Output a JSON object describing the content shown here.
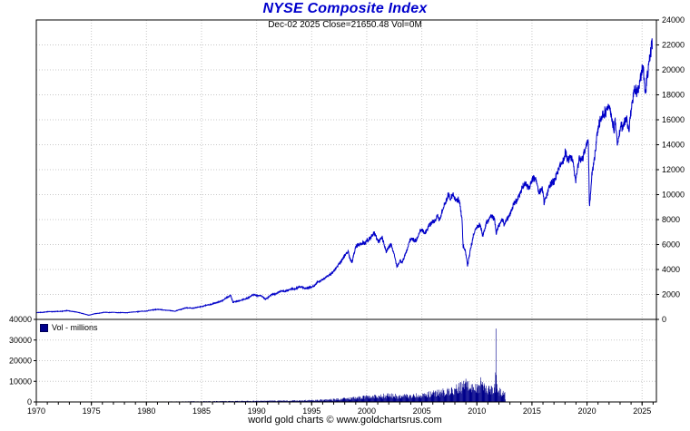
{
  "title": "NYSE Composite Index",
  "subtitle": "Dec-02 2025   Close=21650.48   Vol=0M",
  "footer": "world gold charts © www.goldchartsrus.com",
  "legend": {
    "volume_label": "Vol - millions"
  },
  "colors": {
    "line": "#0000c8",
    "volume": "#00008b",
    "grid": "#c8c8c8",
    "axis": "#000000",
    "title": "#0000cc",
    "label": "#000000"
  },
  "chart_data": {
    "type": "line+bar",
    "title": "NYSE Composite Index",
    "subtitle": "Dec-02 2025   Close=21650.48   Vol=0M",
    "last_quote": {
      "date": "Dec-02 2025",
      "close": 21650.48,
      "vol_millions": 0
    },
    "x_axis": {
      "range": [
        1970,
        2026.3
      ],
      "ticks": [
        1970,
        1975,
        1980,
        1985,
        1990,
        1995,
        2000,
        2005,
        2010,
        2015,
        2020,
        2025
      ]
    },
    "price_axis": {
      "side": "right",
      "range": [
        0,
        24000
      ],
      "ticks": [
        0,
        2000,
        4000,
        6000,
        8000,
        10000,
        12000,
        14000,
        16000,
        18000,
        20000,
        22000,
        24000
      ]
    },
    "volume_axis": {
      "side": "left",
      "range": [
        0,
        40000
      ],
      "ticks": [
        0,
        10000,
        20000,
        30000,
        40000
      ],
      "label": "Vol - millions"
    },
    "price_anchors": [
      [
        1970.0,
        530
      ],
      [
        1970.5,
        560
      ],
      [
        1971.2,
        620
      ],
      [
        1972.0,
        640
      ],
      [
        1972.9,
        700
      ],
      [
        1973.5,
        600
      ],
      [
        1974.0,
        520
      ],
      [
        1974.75,
        340
      ],
      [
        1975.3,
        450
      ],
      [
        1976.2,
        560
      ],
      [
        1977.0,
        555
      ],
      [
        1978.2,
        540
      ],
      [
        1979.0,
        600
      ],
      [
        1980.0,
        680
      ],
      [
        1980.9,
        810
      ],
      [
        1981.6,
        750
      ],
      [
        1982.6,
        660
      ],
      [
        1983.5,
        920
      ],
      [
        1984.3,
        900
      ],
      [
        1985.0,
        1030
      ],
      [
        1986.4,
        1350
      ],
      [
        1987.0,
        1550
      ],
      [
        1987.65,
        1960
      ],
      [
        1987.85,
        1350
      ],
      [
        1988.3,
        1480
      ],
      [
        1989.0,
        1650
      ],
      [
        1989.7,
        1950
      ],
      [
        1990.4,
        1880
      ],
      [
        1990.8,
        1630
      ],
      [
        1991.3,
        1950
      ],
      [
        1992.0,
        2180
      ],
      [
        1993.0,
        2350
      ],
      [
        1994.1,
        2620
      ],
      [
        1994.6,
        2480
      ],
      [
        1995.0,
        2600
      ],
      [
        1995.9,
        3150
      ],
      [
        1996.5,
        3450
      ],
      [
        1997.2,
        4100
      ],
      [
        1997.75,
        4800
      ],
      [
        1998.3,
        5350
      ],
      [
        1998.65,
        4550
      ],
      [
        1999.0,
        5750
      ],
      [
        1999.4,
        6200
      ],
      [
        1999.8,
        6050
      ],
      [
        2000.2,
        6550
      ],
      [
        2000.65,
        6850
      ],
      [
        2001.0,
        6300
      ],
      [
        2001.4,
        6450
      ],
      [
        2001.75,
        5450
      ],
      [
        2002.0,
        5900
      ],
      [
        2002.25,
        5950
      ],
      [
        2002.75,
        4350
      ],
      [
        2003.05,
        4750
      ],
      [
        2003.2,
        4450
      ],
      [
        2003.9,
        6250
      ],
      [
        2004.5,
        6400
      ],
      [
        2004.95,
        7150
      ],
      [
        2005.3,
        7100
      ],
      [
        2005.9,
        7700
      ],
      [
        2006.4,
        8250
      ],
      [
        2006.6,
        7850
      ],
      [
        2007.0,
        9150
      ],
      [
        2007.45,
        9900
      ],
      [
        2007.6,
        9500
      ],
      [
        2007.8,
        10250
      ],
      [
        2008.0,
        9700
      ],
      [
        2008.4,
        9500
      ],
      [
        2008.65,
        8200
      ],
      [
        2008.75,
        5900
      ],
      [
        2008.95,
        5500
      ],
      [
        2009.15,
        4250
      ],
      [
        2009.5,
        6000
      ],
      [
        2009.75,
        6900
      ],
      [
        2010.05,
        7300
      ],
      [
        2010.3,
        7700
      ],
      [
        2010.55,
        6750
      ],
      [
        2010.9,
        7800
      ],
      [
        2011.15,
        8250
      ],
      [
        2011.35,
        8450
      ],
      [
        2011.6,
        7900
      ],
      [
        2011.75,
        6850
      ],
      [
        2012.0,
        7650
      ],
      [
        2012.35,
        7950
      ],
      [
        2012.45,
        7350
      ],
      [
        2012.8,
        8150
      ],
      [
        2013.3,
        9100
      ],
      [
        2013.95,
        10300
      ],
      [
        2014.5,
        11000
      ],
      [
        2014.75,
        10500
      ],
      [
        2015.0,
        11050
      ],
      [
        2015.4,
        11200
      ],
      [
        2015.65,
        10050
      ],
      [
        2015.95,
        10350
      ],
      [
        2016.1,
        9450
      ],
      [
        2016.55,
        10700
      ],
      [
        2016.85,
        10900
      ],
      [
        2017.2,
        11600
      ],
      [
        2017.9,
        12750
      ],
      [
        2018.05,
        13600
      ],
      [
        2018.25,
        12550
      ],
      [
        2018.7,
        13050
      ],
      [
        2018.95,
        11200
      ],
      [
        2019.3,
        12850
      ],
      [
        2019.55,
        13000
      ],
      [
        2019.9,
        13950
      ],
      [
        2020.12,
        14150
      ],
      [
        2020.22,
        8900
      ],
      [
        2020.45,
        11700
      ],
      [
        2020.7,
        13000
      ],
      [
        2020.85,
        14100
      ],
      [
        2021.1,
        15500
      ],
      [
        2021.45,
        16700
      ],
      [
        2021.7,
        16500
      ],
      [
        2021.95,
        17250
      ],
      [
        2022.1,
        17100
      ],
      [
        2022.45,
        15200
      ],
      [
        2022.55,
        15800
      ],
      [
        2022.75,
        13900
      ],
      [
        2023.1,
        15600
      ],
      [
        2023.3,
        15300
      ],
      [
        2023.6,
        15900
      ],
      [
        2023.8,
        15200
      ],
      [
        2024.0,
        16900
      ],
      [
        2024.3,
        18100
      ],
      [
        2024.55,
        18300
      ],
      [
        2024.8,
        19400
      ],
      [
        2024.95,
        19900
      ],
      [
        2025.1,
        20300
      ],
      [
        2025.28,
        17900
      ],
      [
        2025.45,
        19600
      ],
      [
        2025.6,
        20700
      ],
      [
        2025.75,
        21300
      ],
      [
        2025.88,
        22000
      ],
      [
        2025.92,
        21650
      ]
    ],
    "volume_anchors": [
      [
        1970,
        50
      ],
      [
        1978,
        100
      ],
      [
        1983,
        200
      ],
      [
        1987,
        350
      ],
      [
        1990,
        450
      ],
      [
        1993,
        600
      ],
      [
        1995,
        750
      ],
      [
        1997,
        1100
      ],
      [
        1998,
        1500
      ],
      [
        1999,
        1800
      ],
      [
        2000,
        2300
      ],
      [
        2001,
        2600
      ],
      [
        2002,
        3000
      ],
      [
        2003,
        2700
      ],
      [
        2004,
        2800
      ],
      [
        2005,
        3200
      ],
      [
        2006,
        3800
      ],
      [
        2007,
        4600
      ],
      [
        2007.8,
        5400
      ],
      [
        2008.7,
        7200
      ],
      [
        2009.0,
        8200
      ],
      [
        2009.3,
        7400
      ],
      [
        2009.8,
        6200
      ],
      [
        2010.2,
        6800
      ],
      [
        2010.45,
        9800
      ],
      [
        2010.6,
        6600
      ],
      [
        2011.0,
        5600
      ],
      [
        2011.4,
        6400
      ],
      [
        2011.68,
        7200
      ],
      [
        2011.73,
        36000
      ],
      [
        2011.78,
        6800
      ],
      [
        2012.0,
        5200
      ],
      [
        2012.3,
        4200
      ],
      [
        2012.55,
        3600
      ],
      [
        2012.62,
        0
      ],
      [
        2025.92,
        0
      ]
    ]
  }
}
